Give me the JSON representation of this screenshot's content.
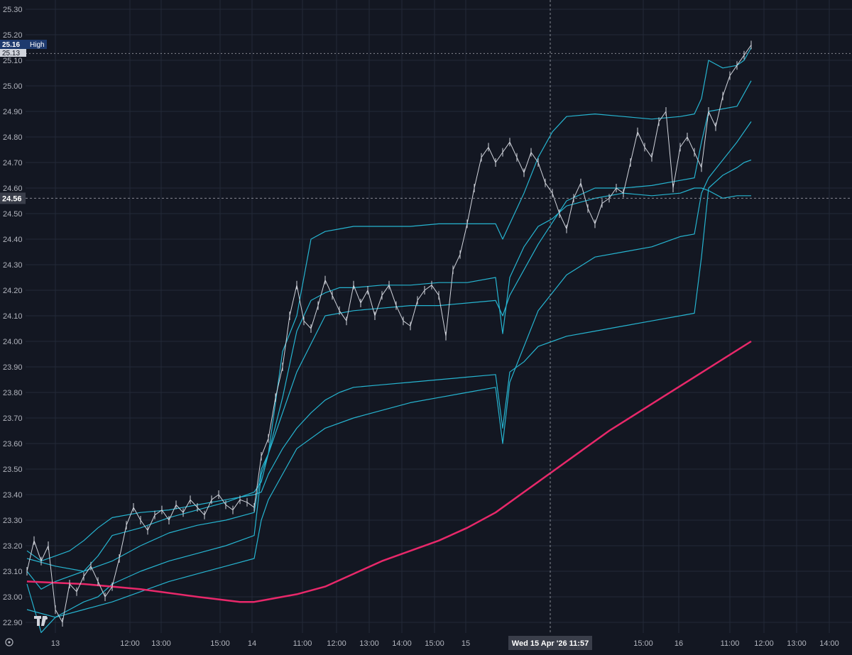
{
  "colors": {
    "background": "#131722",
    "grid": "#232a38",
    "axis_text": "#b2b5be",
    "candle": "#d1d4dc",
    "bands": "#26b4d0",
    "ma": "#e8286a",
    "crosshair": "#868993",
    "high_badge": "#1e3a6e",
    "last_badge": "#3a3e4a"
  },
  "chart_data": {
    "type": "line",
    "y_axis": {
      "ticks": [
        "25.30",
        "25.20",
        "25.10",
        "25.00",
        "24.90",
        "24.80",
        "24.70",
        "24.60",
        "24.50",
        "24.40",
        "24.30",
        "24.20",
        "24.10",
        "24.00",
        "23.90",
        "23.80",
        "23.70",
        "23.60",
        "23.50",
        "23.40",
        "23.30",
        "23.20",
        "23.10",
        "23.00",
        "22.90"
      ],
      "range": [
        22.86,
        25.32
      ]
    },
    "x_axis": {
      "ticks": [
        "13",
        "12:00",
        "13:00",
        "15:00",
        "14",
        "11:00",
        "12:00",
        "13:00",
        "14:00",
        "15:00",
        "15",
        "15:00",
        "16",
        "11:00",
        "12:00",
        "13:00",
        "14:00"
      ],
      "crosshair_label": "Wed 15 Apr '26   11:57"
    },
    "price_labels": {
      "high_value": "25.16",
      "high_text": "High",
      "previous_value": "25.13",
      "crosshair_value": "24.56"
    },
    "series": [
      {
        "key": "upper_band",
        "x": [
          0,
          2,
          4,
          6,
          8,
          10,
          12,
          16,
          20,
          24,
          28,
          32,
          33,
          34,
          36,
          38,
          40,
          42,
          44,
          46,
          50,
          54,
          58,
          62,
          66,
          67,
          68,
          70,
          72,
          74,
          76,
          80,
          84,
          88,
          92,
          94,
          95,
          96,
          98,
          100,
          101,
          102
        ],
        "values": [
          23.18,
          23.14,
          23.16,
          23.18,
          23.22,
          23.27,
          23.31,
          23.33,
          23.34,
          23.36,
          23.38,
          23.4,
          23.41,
          23.48,
          23.58,
          23.66,
          23.72,
          23.77,
          23.8,
          23.82,
          23.83,
          23.84,
          23.85,
          23.86,
          23.87,
          23.66,
          23.88,
          23.92,
          23.98,
          24.0,
          24.02,
          24.04,
          24.06,
          24.08,
          24.1,
          24.11,
          24.33,
          24.6,
          24.65,
          24.68,
          24.7,
          24.71
        ]
      },
      {
        "key": "vwap",
        "x": [
          0,
          2,
          4,
          6,
          8,
          10,
          12,
          16,
          20,
          24,
          28,
          32,
          33,
          34,
          36,
          38,
          40,
          42,
          44,
          46,
          50,
          54,
          58,
          62,
          66,
          67,
          68,
          70,
          72,
          74,
          76,
          80,
          84,
          88,
          92,
          94,
          95,
          96,
          98,
          100,
          101,
          102
        ],
        "values": [
          23.1,
          23.03,
          23.06,
          23.08,
          23.1,
          23.16,
          23.24,
          23.27,
          23.31,
          23.34,
          23.37,
          23.41,
          23.45,
          23.56,
          23.78,
          24.04,
          24.16,
          24.19,
          24.21,
          24.21,
          24.22,
          24.22,
          24.23,
          24.23,
          24.25,
          24.03,
          24.25,
          24.37,
          24.45,
          24.48,
          24.53,
          24.56,
          24.58,
          24.57,
          24.58,
          24.6,
          24.6,
          24.59,
          24.56,
          24.57,
          24.57,
          24.57
        ]
      },
      {
        "key": "lower_band",
        "x": [
          0,
          2,
          4,
          6,
          8,
          10,
          12,
          16,
          20,
          24,
          28,
          32,
          33,
          34,
          36,
          38,
          40,
          42,
          44,
          46,
          50,
          54,
          58,
          62,
          66,
          67,
          68,
          70,
          72,
          74,
          76,
          80,
          84,
          88,
          92,
          94,
          95,
          96,
          98,
          100,
          101,
          102
        ],
        "values": [
          23.05,
          22.86,
          22.92,
          22.95,
          22.98,
          23.0,
          23.05,
          23.1,
          23.14,
          23.17,
          23.2,
          23.24,
          23.48,
          23.56,
          23.96,
          24.1,
          24.4,
          24.43,
          24.44,
          24.45,
          24.45,
          24.45,
          24.46,
          24.46,
          24.46,
          24.4,
          24.46,
          24.58,
          24.72,
          24.82,
          24.88,
          24.89,
          24.88,
          24.87,
          24.88,
          24.89,
          24.95,
          25.1,
          25.07,
          25.08,
          25.1,
          25.15
        ]
      },
      {
        "key": "band2_lower",
        "x": [
          0,
          4,
          8,
          12,
          16,
          20,
          24,
          28,
          32,
          33,
          34,
          38,
          42,
          46,
          50,
          54,
          58,
          62,
          66,
          67,
          68,
          72,
          76,
          80,
          84,
          88,
          92,
          94,
          95,
          96,
          100,
          102
        ],
        "values": [
          22.95,
          22.92,
          22.95,
          22.98,
          23.02,
          23.06,
          23.09,
          23.12,
          23.15,
          23.3,
          23.38,
          23.58,
          23.66,
          23.7,
          23.73,
          23.76,
          23.78,
          23.8,
          23.82,
          23.6,
          23.84,
          24.12,
          24.26,
          24.33,
          24.35,
          24.37,
          24.41,
          24.42,
          24.58,
          24.64,
          24.78,
          24.86
        ]
      },
      {
        "key": "band2_upper",
        "x": [
          0,
          4,
          8,
          12,
          16,
          20,
          24,
          28,
          32,
          33,
          34,
          38,
          42,
          46,
          50,
          54,
          58,
          62,
          66,
          67,
          68,
          72,
          76,
          80,
          84,
          88,
          92,
          94,
          95,
          96,
          100,
          102
        ],
        "values": [
          23.15,
          23.12,
          23.1,
          23.14,
          23.2,
          23.25,
          23.28,
          23.3,
          23.33,
          23.5,
          23.56,
          23.88,
          24.1,
          24.12,
          24.13,
          24.14,
          24.14,
          24.15,
          24.16,
          24.1,
          24.18,
          24.38,
          24.55,
          24.6,
          24.6,
          24.61,
          24.63,
          24.64,
          24.78,
          24.9,
          24.92,
          25.02
        ]
      },
      {
        "key": "ma",
        "x": [
          0,
          8,
          16,
          24,
          30,
          32,
          34,
          38,
          42,
          46,
          50,
          54,
          58,
          62,
          66,
          70,
          74,
          78,
          82,
          86,
          90,
          94,
          98,
          102
        ],
        "values": [
          23.06,
          23.05,
          23.03,
          23.0,
          22.98,
          22.98,
          22.99,
          23.01,
          23.04,
          23.09,
          23.14,
          23.18,
          23.22,
          23.27,
          23.33,
          23.41,
          23.49,
          23.57,
          23.65,
          23.72,
          23.79,
          23.86,
          23.93,
          24.0
        ]
      },
      {
        "key": "price",
        "x": [
          0,
          1,
          2,
          3,
          4,
          5,
          6,
          7,
          8,
          9,
          10,
          11,
          12,
          13,
          14,
          15,
          16,
          17,
          18,
          19,
          20,
          21,
          22,
          23,
          24,
          25,
          26,
          27,
          28,
          29,
          30,
          31,
          32,
          33,
          34,
          35,
          36,
          37,
          38,
          39,
          40,
          41,
          42,
          43,
          44,
          45,
          46,
          47,
          48,
          49,
          50,
          51,
          52,
          53,
          54,
          55,
          56,
          57,
          58,
          59,
          60,
          61,
          62,
          63,
          64,
          65,
          66,
          67,
          68,
          69,
          70,
          71,
          72,
          73,
          74,
          75,
          76,
          77,
          78,
          79,
          80,
          81,
          82,
          83,
          84,
          85,
          86,
          87,
          88,
          89,
          90,
          91,
          92,
          93,
          94,
          95,
          96,
          97,
          98,
          99,
          100,
          101,
          102
        ],
        "values": [
          23.1,
          23.22,
          23.14,
          23.2,
          22.95,
          22.9,
          23.05,
          23.02,
          23.08,
          23.12,
          23.06,
          23.0,
          23.04,
          23.15,
          23.28,
          23.35,
          23.3,
          23.26,
          23.32,
          23.34,
          23.3,
          23.36,
          23.33,
          23.38,
          23.35,
          23.32,
          23.38,
          23.4,
          23.36,
          23.34,
          23.38,
          23.37,
          23.35,
          23.55,
          23.62,
          23.78,
          23.9,
          24.1,
          24.22,
          24.08,
          24.05,
          24.14,
          24.24,
          24.18,
          24.12,
          24.08,
          24.22,
          24.15,
          24.2,
          24.1,
          24.18,
          24.22,
          24.14,
          24.08,
          24.06,
          24.16,
          24.2,
          24.22,
          24.18,
          24.02,
          24.28,
          24.34,
          24.46,
          24.6,
          24.72,
          24.76,
          24.7,
          24.74,
          24.78,
          24.72,
          24.66,
          24.74,
          24.7,
          24.62,
          24.58,
          24.5,
          24.44,
          24.56,
          24.62,
          24.52,
          24.46,
          24.54,
          24.56,
          24.6,
          24.58,
          24.7,
          24.82,
          24.76,
          24.72,
          24.86,
          24.9,
          24.6,
          24.76,
          24.8,
          24.74,
          24.68,
          24.9,
          24.84,
          24.96,
          25.04,
          25.08,
          25.12,
          25.16
        ]
      }
    ]
  }
}
